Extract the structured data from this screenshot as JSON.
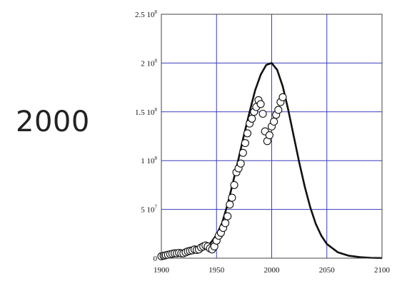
{
  "side_label": "2000",
  "chart_data": {
    "type": "scatter",
    "title": "",
    "xlabel": "",
    "ylabel": "",
    "xlim": [
      1900,
      2100
    ],
    "ylim": [
      0,
      250000000
    ],
    "grid": true,
    "grid_color": "#3b3bbf",
    "x_ticks": [
      1900,
      1950,
      2000,
      2050,
      2100
    ],
    "y_ticks": [
      {
        "value": 0,
        "mantissa": "0",
        "exp": ""
      },
      {
        "value": 50000000,
        "mantissa": "5 10",
        "exp": "7"
      },
      {
        "value": 100000000,
        "mantissa": "1 10",
        "exp": "8"
      },
      {
        "value": 150000000,
        "mantissa": "1.5 10",
        "exp": "8"
      },
      {
        "value": 200000000,
        "mantissa": "2 10",
        "exp": "8"
      },
      {
        "value": 250000000,
        "mantissa": "2.5 10",
        "exp": "8"
      }
    ],
    "series": [
      {
        "kind": "line",
        "color": "#111111",
        "x": [
          1900,
          1910,
          1920,
          1930,
          1940,
          1945,
          1950,
          1955,
          1960,
          1965,
          1970,
          1975,
          1980,
          1985,
          1990,
          1995,
          2000,
          2005,
          2010,
          2015,
          2020,
          2025,
          2030,
          2035,
          2040,
          2045,
          2050,
          2060,
          2070,
          2080,
          2090,
          2100
        ],
        "y": [
          3000000,
          4000000,
          5500000,
          8000000,
          12000000,
          16000000,
          24000000,
          36000000,
          55000000,
          78000000,
          102000000,
          127000000,
          150000000,
          172000000,
          188000000,
          198000000,
          200000000,
          193000000,
          176000000,
          152000000,
          125000000,
          98000000,
          73000000,
          52000000,
          35000000,
          23000000,
          14500000,
          6000000,
          2500000,
          1000000,
          400000,
          150000
        ]
      },
      {
        "kind": "points",
        "color": "#111111",
        "x": [
          1900,
          1902,
          1904,
          1906,
          1908,
          1910,
          1912,
          1914,
          1916,
          1918,
          1920,
          1922,
          1924,
          1926,
          1928,
          1930,
          1932,
          1934,
          1936,
          1938,
          1940,
          1942,
          1944,
          1946,
          1948,
          1950,
          1952,
          1954,
          1956,
          1958,
          1960,
          1962,
          1964,
          1966,
          1968,
          1970,
          1972,
          1974,
          1976,
          1978,
          1980,
          1982,
          1984,
          1986,
          1988,
          1990,
          1992,
          1994,
          1996,
          1998,
          2000,
          2002,
          2004,
          2006,
          2008,
          2010
        ],
        "y": [
          2000000,
          2500000,
          3000000,
          3500000,
          4000000,
          4500000,
          5000000,
          5000000,
          5500000,
          5000000,
          5000000,
          6000000,
          7000000,
          7500000,
          8000000,
          9000000,
          8500000,
          9000000,
          11000000,
          12000000,
          13000000,
          12000000,
          10000000,
          9000000,
          12000000,
          18000000,
          23000000,
          26000000,
          31000000,
          36000000,
          43000000,
          55000000,
          62000000,
          75000000,
          88000000,
          92000000,
          97000000,
          108000000,
          118000000,
          128000000,
          138000000,
          143000000,
          150000000,
          155000000,
          162000000,
          158000000,
          148000000,
          130000000,
          120000000,
          126000000,
          135000000,
          140000000,
          147000000,
          152000000,
          160000000,
          165000000
        ]
      }
    ]
  }
}
